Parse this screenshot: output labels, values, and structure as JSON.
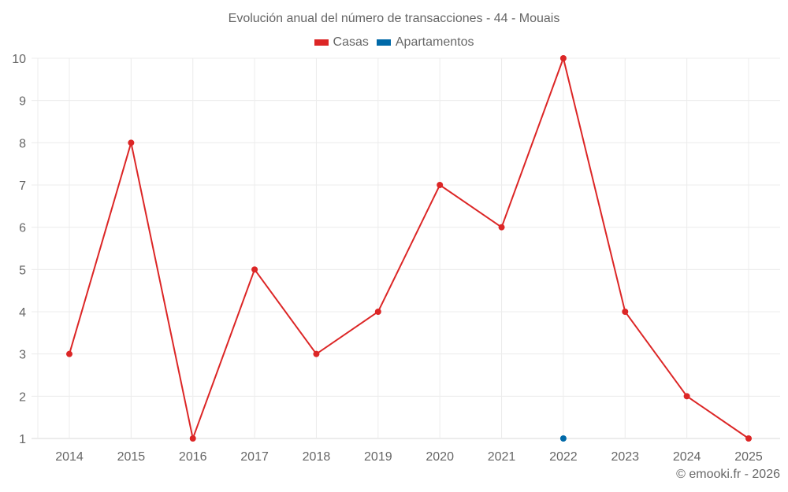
{
  "chart_data": {
    "type": "line",
    "title": "Evolución anual del número de transacciones - 44 - Mouais",
    "categories": [
      "2014",
      "2015",
      "2016",
      "2017",
      "2018",
      "2019",
      "2020",
      "2021",
      "2022",
      "2023",
      "2024",
      "2025"
    ],
    "series": [
      {
        "name": "Casas",
        "color": "#dc2626",
        "values": [
          3,
          8,
          1,
          5,
          3,
          4,
          7,
          6,
          10,
          4,
          2,
          1
        ]
      },
      {
        "name": "Apartamentos",
        "color": "#0069a8",
        "values": [
          null,
          null,
          null,
          null,
          null,
          null,
          null,
          null,
          1,
          null,
          null,
          null
        ]
      }
    ],
    "ylim": [
      1,
      10
    ],
    "yticks": [
      1,
      2,
      3,
      4,
      5,
      6,
      7,
      8,
      9,
      10
    ],
    "xlabel": "",
    "ylabel": "",
    "grid": true,
    "legend": "top-center"
  },
  "credit": "© emooki.fr - 2026"
}
